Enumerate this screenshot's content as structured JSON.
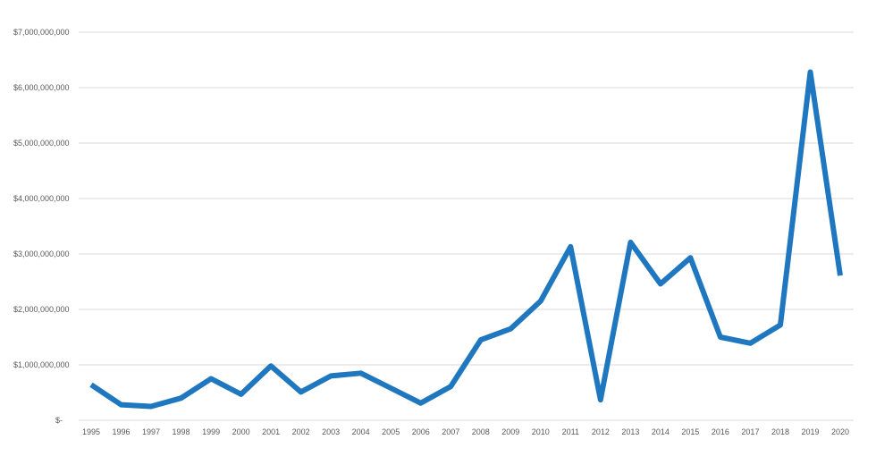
{
  "chart_data": {
    "type": "line",
    "title": "",
    "xlabel": "",
    "ylabel": "",
    "categories": [
      "1995",
      "1996",
      "1997",
      "1998",
      "1999",
      "2000",
      "2001",
      "2002",
      "2003",
      "2004",
      "2005",
      "2006",
      "2007",
      "2008",
      "2009",
      "2010",
      "2011",
      "2012",
      "2013",
      "2014",
      "2015",
      "2016",
      "2017",
      "2018",
      "2019",
      "2020"
    ],
    "series": [
      {
        "values": [
          640000000,
          280000000,
          250000000,
          400000000,
          750000000,
          470000000,
          980000000,
          510000000,
          800000000,
          850000000,
          580000000,
          310000000,
          610000000,
          1450000000,
          1650000000,
          2150000000,
          3130000000,
          370000000,
          3210000000,
          2460000000,
          2930000000,
          1500000000,
          1390000000,
          1720000000,
          6280000000,
          2610000000
        ],
        "color": "#1f77bf"
      }
    ],
    "ylim": [
      0,
      7000000000
    ],
    "yticks": [
      {
        "value": 0,
        "label": "$-"
      },
      {
        "value": 1000000000,
        "label": "$1,000,000,000"
      },
      {
        "value": 2000000000,
        "label": "$2,000,000,000"
      },
      {
        "value": 3000000000,
        "label": "$3,000,000,000"
      },
      {
        "value": 4000000000,
        "label": "$4,000,000,000"
      },
      {
        "value": 5000000000,
        "label": "$5,000,000,000"
      },
      {
        "value": 6000000000,
        "label": "$6,000,000,000"
      },
      {
        "value": 7000000000,
        "label": "$7,000,000,000"
      }
    ],
    "grid": true,
    "legend": "none"
  }
}
